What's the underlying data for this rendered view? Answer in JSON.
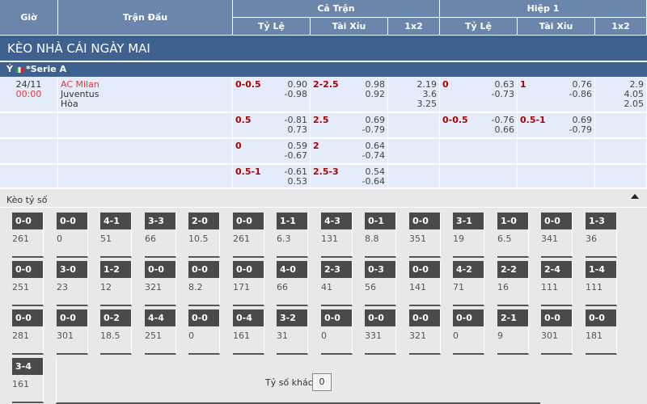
{
  "header": {
    "gio": "Giờ",
    "tran_dau": "Trận Đấu",
    "ca_tran": "Cả Trận",
    "hiep1": "Hiệp 1",
    "ty_le": "Tỷ Lệ",
    "tai_xiu": "Tài Xỉu",
    "x12": "1x2"
  },
  "title": "KÈO NHÀ CÁI NGÀY MAI",
  "league": {
    "country": "Ý",
    "name": "*Serie A"
  },
  "match": {
    "date": "24/11",
    "time": "00:00",
    "home": "AC Milan",
    "away": "Juventus",
    "draw": "Hòa"
  },
  "rows": [
    {
      "ft_hc": "0-0.5",
      "ft_hc_o": [
        "0.90",
        "-0.98"
      ],
      "ft_ou": "2-2.5",
      "ft_ou_o": [
        "0.98",
        "0.92"
      ],
      "ft_1x2": [
        "2.19",
        "3.6",
        "3.25"
      ],
      "h1_hc": "0",
      "h1_hc_o": [
        "0.63",
        "-0.73"
      ],
      "h1_ou": "1",
      "h1_ou_o": [
        "0.76",
        "-0.86"
      ],
      "h1_1x2": [
        "2.9",
        "4.05",
        "2.05"
      ]
    },
    {
      "ft_hc": "0.5",
      "ft_hc_o": [
        "-0.81",
        "0.73"
      ],
      "ft_ou": "2.5",
      "ft_ou_o": [
        "0.69",
        "-0.79"
      ],
      "h1_hc": "0-0.5",
      "h1_hc_o": [
        "-0.76",
        "0.66"
      ],
      "h1_ou": "0.5-1",
      "h1_ou_o": [
        "0.69",
        "-0.79"
      ]
    },
    {
      "ft_hc": "0",
      "ft_hc_o": [
        "0.59",
        "-0.67"
      ],
      "ft_ou": "2",
      "ft_ou_o": [
        "0.64",
        "-0.74"
      ]
    },
    {
      "ft_hc": "0.5-1",
      "ft_hc_o": [
        "-0.61",
        "0.53"
      ],
      "ft_ou": "2.5-3",
      "ft_ou_o": [
        "0.54",
        "-0.64"
      ]
    }
  ],
  "score_section": {
    "title": "Kèo tỷ số",
    "other_label": "Tỷ số khác",
    "other_value": "0",
    "collapse_icon": "caret-up-icon"
  },
  "scores": [
    [
      [
        "0-0",
        "261"
      ],
      [
        "0-0",
        "0"
      ],
      [
        "4-1",
        "51"
      ],
      [
        "3-3",
        "66"
      ],
      [
        "2-0",
        "10.5"
      ],
      [
        "0-0",
        "261"
      ],
      [
        "1-1",
        "6.3"
      ],
      [
        "4-3",
        "131"
      ],
      [
        "0-1",
        "8.8"
      ],
      [
        "0-0",
        "351"
      ],
      [
        "3-1",
        "19"
      ],
      [
        "1-0",
        "6.5"
      ],
      [
        "0-0",
        "341"
      ],
      [
        "1-3",
        "36"
      ]
    ],
    [
      [
        "0-0",
        "251"
      ],
      [
        "3-0",
        "23"
      ],
      [
        "1-2",
        "12"
      ],
      [
        "0-0",
        "321"
      ],
      [
        "0-0",
        "8.2"
      ],
      [
        "0-0",
        "171"
      ],
      [
        "4-0",
        "66"
      ],
      [
        "2-3",
        "41"
      ],
      [
        "0-3",
        "56"
      ],
      [
        "0-0",
        "141"
      ],
      [
        "4-2",
        "71"
      ],
      [
        "2-2",
        "16"
      ],
      [
        "2-4",
        "111"
      ],
      [
        "1-4",
        "111"
      ]
    ],
    [
      [
        "0-0",
        "281"
      ],
      [
        "0-0",
        "301"
      ],
      [
        "0-2",
        "18.5"
      ],
      [
        "4-4",
        "251"
      ],
      [
        "0-0",
        "0"
      ],
      [
        "0-4",
        "161"
      ],
      [
        "3-2",
        "31"
      ],
      [
        "0-0",
        "0"
      ],
      [
        "0-0",
        "331"
      ],
      [
        "0-0",
        "321"
      ],
      [
        "0-0",
        "0"
      ],
      [
        "2-1",
        "9"
      ],
      [
        "0-0",
        "301"
      ],
      [
        "0-0",
        "181"
      ]
    ],
    [
      [
        "3-4",
        "161"
      ]
    ]
  ]
}
